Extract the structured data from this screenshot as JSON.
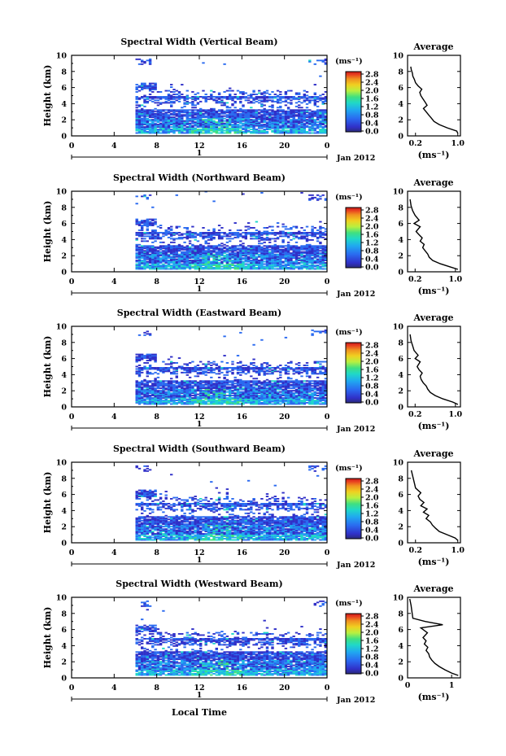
{
  "colorbar": {
    "unit": "(ms⁻¹)",
    "ticks": [
      "2.8",
      "2.4",
      "2.0",
      "1.6",
      "1.2",
      "0.8",
      "0.4",
      "0.0"
    ],
    "colors": [
      "#2b2b7a",
      "#3030c8",
      "#2a6af0",
      "#20a8f0",
      "#20d8c8",
      "#40e080",
      "#b8f040",
      "#f0d020",
      "#f09020",
      "#e84020",
      "#c81818"
    ]
  },
  "x_axis": {
    "ticks": [
      "0",
      "4",
      "8",
      "12",
      "16",
      "20",
      "0"
    ],
    "range": [
      0,
      24
    ],
    "day_marker": "1",
    "date_label": "Jan 2012",
    "xlabel": "Local Time"
  },
  "y_axis": {
    "ylabel": "Height (km)",
    "ticks": [
      "0",
      "2",
      "4",
      "6",
      "8",
      "10"
    ],
    "range": [
      0,
      10
    ]
  },
  "profile_axis": {
    "title": "Average",
    "xlabel": "(ms⁻¹)",
    "yticks": [
      "0",
      "2",
      "4",
      "6",
      "8",
      "10"
    ]
  },
  "chart_data": [
    {
      "type": "heatmap",
      "title": "Spectral Width (Vertical Beam)",
      "x_start_hour": 6,
      "profile": {
        "type": "line",
        "xticks": [
          "0.2",
          "1.0"
        ],
        "xlim": [
          0.05,
          1.05
        ],
        "x": [
          1.0,
          0.98,
          0.8,
          0.65,
          0.55,
          0.5,
          0.45,
          0.4,
          0.35,
          0.42,
          0.38,
          0.34,
          0.3,
          0.28,
          0.32,
          0.25,
          0.2,
          0.18,
          0.15,
          0.14,
          0.12,
          0.11
        ],
        "y": [
          0.3,
          0.6,
          1.0,
          1.4,
          1.8,
          2.2,
          2.6,
          3.0,
          3.4,
          3.8,
          4.2,
          4.6,
          5.0,
          5.4,
          5.8,
          6.2,
          6.6,
          7.0,
          7.4,
          7.8,
          8.2,
          8.6
        ]
      }
    },
    {
      "type": "heatmap",
      "title": "Spectral Width (Northward Beam)",
      "x_start_hour": 6,
      "profile": {
        "type": "line",
        "xticks": [
          "0.2",
          "1.0"
        ],
        "xlim": [
          0.05,
          1.1
        ],
        "x": [
          1.05,
          0.9,
          0.7,
          0.55,
          0.48,
          0.45,
          0.4,
          0.35,
          0.38,
          0.3,
          0.34,
          0.28,
          0.22,
          0.3,
          0.18,
          0.28,
          0.2,
          0.15,
          0.12,
          0.1
        ],
        "y": [
          0.3,
          0.6,
          1.0,
          1.4,
          1.8,
          2.2,
          2.6,
          3.0,
          3.4,
          3.8,
          4.2,
          4.6,
          5.0,
          5.6,
          6.0,
          6.4,
          7.0,
          7.6,
          8.2,
          9.0
        ]
      }
    },
    {
      "type": "heatmap",
      "title": "Spectral Width (Eastward Beam)",
      "x_start_hour": 6,
      "profile": {
        "type": "line",
        "xticks": [
          "0.2",
          "1.0"
        ],
        "xlim": [
          0.05,
          1.1
        ],
        "x": [
          1.05,
          0.95,
          0.75,
          0.6,
          0.5,
          0.45,
          0.42,
          0.36,
          0.32,
          0.3,
          0.34,
          0.28,
          0.24,
          0.3,
          0.2,
          0.26,
          0.18,
          0.15,
          0.12,
          0.1
        ],
        "y": [
          0.3,
          0.6,
          1.0,
          1.4,
          1.8,
          2.2,
          2.6,
          3.0,
          3.4,
          3.8,
          4.2,
          4.6,
          5.0,
          5.6,
          6.0,
          6.4,
          7.0,
          7.6,
          8.2,
          9.0
        ]
      }
    },
    {
      "type": "heatmap",
      "title": "Spectral Width (Southward Beam)",
      "x_start_hour": 6,
      "profile": {
        "type": "line",
        "xticks": [
          "0.2",
          "1.0"
        ],
        "xlim": [
          0.05,
          1.05
        ],
        "x": [
          1.0,
          0.95,
          0.8,
          0.65,
          0.58,
          0.52,
          0.48,
          0.4,
          0.45,
          0.35,
          0.42,
          0.3,
          0.36,
          0.28,
          0.25,
          0.3,
          0.2,
          0.18,
          0.15,
          0.12
        ],
        "y": [
          0.3,
          0.6,
          1.0,
          1.4,
          1.8,
          2.2,
          2.6,
          3.0,
          3.4,
          3.8,
          4.2,
          4.6,
          5.0,
          5.4,
          5.8,
          6.2,
          6.8,
          7.4,
          8.2,
          9.0
        ]
      }
    },
    {
      "type": "heatmap",
      "title": "Spectral Width (Westward Beam)",
      "x_start_hour": 6,
      "profile": {
        "type": "line",
        "xticks": [
          "0",
          "1"
        ],
        "xlim": [
          0,
          1.2
        ],
        "x": [
          1.15,
          1.0,
          0.85,
          0.72,
          0.62,
          0.55,
          0.5,
          0.48,
          0.42,
          0.46,
          0.38,
          0.42,
          0.35,
          0.45,
          0.3,
          0.8,
          0.4,
          0.12,
          0.1,
          0.08,
          0.05
        ],
        "y": [
          0.3,
          0.6,
          1.0,
          1.4,
          1.8,
          2.2,
          2.6,
          3.0,
          3.4,
          3.8,
          4.2,
          4.6,
          5.0,
          5.6,
          6.2,
          6.6,
          7.0,
          7.4,
          8.2,
          9.0,
          9.8
        ]
      }
    }
  ]
}
